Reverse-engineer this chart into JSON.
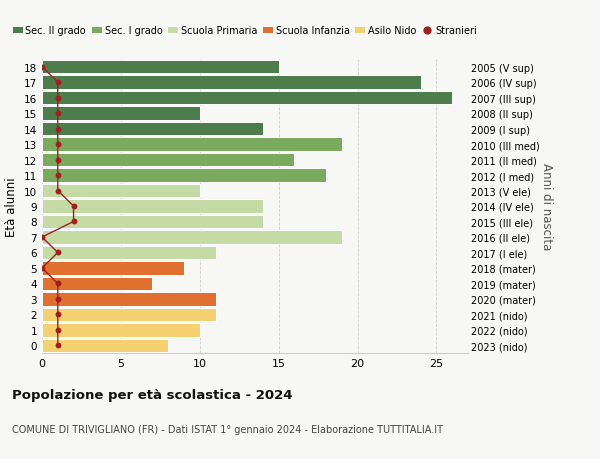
{
  "ages": [
    18,
    17,
    16,
    15,
    14,
    13,
    12,
    11,
    10,
    9,
    8,
    7,
    6,
    5,
    4,
    3,
    2,
    1,
    0
  ],
  "right_labels": [
    "2005 (V sup)",
    "2006 (IV sup)",
    "2007 (III sup)",
    "2008 (II sup)",
    "2009 (I sup)",
    "2010 (III med)",
    "2011 (II med)",
    "2012 (I med)",
    "2013 (V ele)",
    "2014 (IV ele)",
    "2015 (III ele)",
    "2016 (II ele)",
    "2017 (I ele)",
    "2018 (mater)",
    "2019 (mater)",
    "2020 (mater)",
    "2021 (nido)",
    "2022 (nido)",
    "2023 (nido)"
  ],
  "bar_values": [
    15,
    24,
    26,
    10,
    14,
    19,
    16,
    18,
    10,
    14,
    14,
    19,
    11,
    9,
    7,
    11,
    11,
    10,
    8
  ],
  "bar_colors": [
    "#4d7c4d",
    "#4d7c4d",
    "#4d7c4d",
    "#4d7c4d",
    "#4d7c4d",
    "#7aaa5e",
    "#7aaa5e",
    "#7aaa5e",
    "#c5dba5",
    "#c5dba5",
    "#c5dba5",
    "#c5dba5",
    "#c5dba5",
    "#e07030",
    "#e07030",
    "#e07030",
    "#f5d070",
    "#f5d070",
    "#f5d070"
  ],
  "stranieri_x": [
    0,
    1,
    1,
    1,
    1,
    1,
    1,
    1,
    1,
    2,
    2,
    0,
    1,
    0,
    1,
    1,
    1,
    1,
    1
  ],
  "color_sec2": "#4d7c4d",
  "color_sec1": "#7aaa5e",
  "color_prim": "#c5dba5",
  "color_inf": "#e07030",
  "color_nido": "#f5d070",
  "color_stranieri": "#a02020",
  "title": "Popolazione per età scolastica - 2024",
  "subtitle": "COMUNE DI TRIVIGLIANO (FR) - Dati ISTAT 1° gennaio 2024 - Elaborazione TUTTITALIA.IT",
  "ylabel": "Età alunni",
  "right_ylabel": "Anni di nascita",
  "xlim": [
    0,
    27
  ],
  "xticks": [
    0,
    5,
    10,
    15,
    20,
    25
  ],
  "legend_labels": [
    "Sec. II grado",
    "Sec. I grado",
    "Scuola Primaria",
    "Scuola Infanzia",
    "Asilo Nido",
    "Stranieri"
  ],
  "bg_color": "#f7f7f5",
  "bar_edge_color": "#ffffff"
}
